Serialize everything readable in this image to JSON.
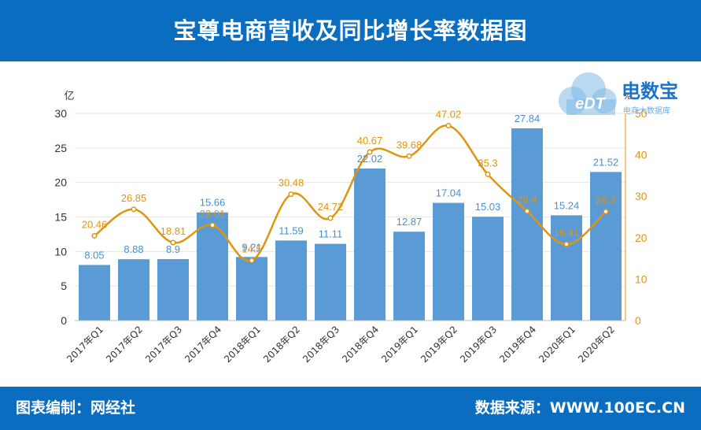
{
  "header": {
    "title": "宝尊电商营收及同比增长率数据图"
  },
  "footer": {
    "credit": "图表编制：网经社",
    "source": "数据来源：WWW.100EC.CN"
  },
  "logo": {
    "mark": "eDT",
    "name": "电数宝",
    "tagline": "电商大数据库"
  },
  "colors": {
    "bar": "#5b9bd5",
    "line": "#e0950f",
    "header": "#0a6dbf",
    "axis": "#333333",
    "grid": "#e6e6e6"
  },
  "chart_data": {
    "type": "bar",
    "categories": [
      "2017年Q1",
      "2017年Q2",
      "2017年Q3",
      "2017年Q4",
      "2018年Q1",
      "2018年Q2",
      "2018年Q3",
      "2018年Q4",
      "2019年Q1",
      "2019年Q2",
      "2019年Q3",
      "2019年Q4",
      "2020年Q1",
      "2020年Q2"
    ],
    "series": [
      {
        "type": "bar",
        "axis": "left",
        "values": [
          8.05,
          8.88,
          8.9,
          15.66,
          9.21,
          11.59,
          11.11,
          22.02,
          12.87,
          17.04,
          15.03,
          27.84,
          15.24,
          21.52
        ]
      },
      {
        "type": "line",
        "axis": "right",
        "values": [
          20.46,
          26.85,
          18.81,
          23.01,
          14.5,
          30.48,
          24.72,
          40.67,
          39.68,
          47.02,
          35.3,
          26.4,
          18.41,
          26.3
        ]
      }
    ],
    "y_left": {
      "unit": "亿",
      "range": [
        0,
        30
      ],
      "ticks": [
        "0",
        "5",
        "10",
        "15",
        "20",
        "25",
        "30"
      ]
    },
    "y_right": {
      "unit": "%",
      "range": [
        0,
        50
      ],
      "ticks": [
        "0",
        "10",
        "20",
        "30",
        "40",
        "50"
      ]
    },
    "bar_labels": [
      "8.05",
      "8.88",
      "8.9",
      "15.66",
      "9.21",
      "11.59",
      "11.11",
      "22.02",
      "12.87",
      "17.04",
      "15.03",
      "27.84",
      "15.24",
      "21.52"
    ],
    "line_labels": [
      "20.46",
      "26.85",
      "18.81",
      "23.01",
      "14.5",
      "30.48",
      "24.72",
      "40.67",
      "39.68",
      "47.02",
      "35.3",
      "26.4",
      "18.41",
      "26.3"
    ],
    "grid": true
  }
}
